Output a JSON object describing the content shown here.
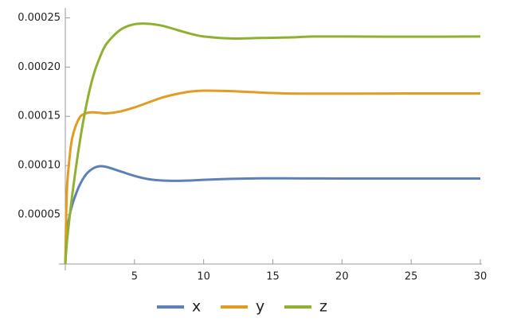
{
  "chart_data": {
    "type": "line",
    "x": [
      0,
      0.1,
      0.25,
      0.5,
      1,
      1.5,
      2,
      2.5,
      3,
      4,
      5,
      6,
      7,
      8,
      9,
      10,
      12,
      14,
      16,
      18,
      20,
      25,
      30
    ],
    "series": [
      {
        "name": "x",
        "color": "#5e81b5",
        "values": [
          0,
          3e-05,
          4.5e-05,
          6e-05,
          7.9e-05,
          9.1e-05,
          9.7e-05,
          9.93e-05,
          9.85e-05,
          9.4e-05,
          8.95e-05,
          8.62e-05,
          8.48e-05,
          8.45e-05,
          8.48e-05,
          8.55e-05,
          8.65e-05,
          8.7e-05,
          8.7e-05,
          8.69e-05,
          8.68e-05,
          8.68e-05,
          8.68e-05
        ]
      },
      {
        "name": "y",
        "color": "#e19c24",
        "values": [
          0,
          7e-05,
          0.0001,
          0.000128,
          0.000148,
          0.000153,
          0.000154,
          0.0001535,
          0.000153,
          0.000155,
          0.000159,
          0.000164,
          0.000169,
          0.0001725,
          0.000175,
          0.000176,
          0.0001755,
          0.0001742,
          0.0001732,
          0.000173,
          0.000173,
          0.0001732,
          0.0001732
        ]
      },
      {
        "name": "z",
        "color": "#8fb032",
        "values": [
          0,
          2e-05,
          4e-05,
          7e-05,
          0.00012,
          0.00016,
          0.00019,
          0.00021,
          0.000224,
          0.000238,
          0.0002435,
          0.000244,
          0.000242,
          0.000238,
          0.000234,
          0.000231,
          0.000229,
          0.0002295,
          0.00023,
          0.000231,
          0.000231,
          0.0002308,
          0.000231
        ]
      }
    ],
    "xlim": [
      0,
      30
    ],
    "xticks": [
      5,
      10,
      15,
      20,
      25,
      30
    ],
    "ylim": [
      0,
      0.00026
    ],
    "yticks": [
      {
        "value": 5e-05,
        "label": "0.00005"
      },
      {
        "value": 0.0001,
        "label": "0.00010"
      },
      {
        "value": 0.00015,
        "label": "0.00015"
      },
      {
        "value": 0.0002,
        "label": "0.00020"
      },
      {
        "value": 0.00025,
        "label": "0.00025"
      }
    ],
    "legend": "bottom"
  }
}
